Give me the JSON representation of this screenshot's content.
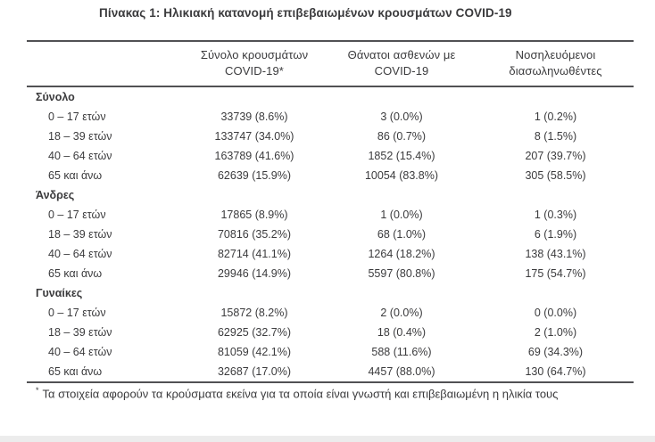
{
  "title": "Πίνακας 1: Ηλικιακή κατανομή επιβεβαιωμένων κρουσμάτων COVID-19",
  "colors": {
    "text": "#3b3b3d",
    "rule": "#515154",
    "background": "#ffffff"
  },
  "table": {
    "columns": {
      "cases_line1": "Σύνολο κρουσμάτων",
      "cases_line2": "COVID-19*",
      "deaths_line1": "Θάνατοι ασθενών με",
      "deaths_line2": "COVID-19",
      "hospitalized_line1": "Νοσηλευόμενοι",
      "hospitalized_line2": "διασωληνωθέντες"
    },
    "sections": [
      {
        "label": "Σύνολο",
        "rows": [
          {
            "age": "0 – 17 ετών",
            "cases": "33739 (8.6%)",
            "deaths": "3 (0.0%)",
            "hospitalized": "1 (0.2%)"
          },
          {
            "age": "18 – 39 ετών",
            "cases": "133747 (34.0%)",
            "deaths": "86 (0.7%)",
            "hospitalized": "8 (1.5%)"
          },
          {
            "age": "40 – 64 ετών",
            "cases": "163789 (41.6%)",
            "deaths": "1852 (15.4%)",
            "hospitalized": "207 (39.7%)"
          },
          {
            "age": "65 και άνω",
            "cases": "62639 (15.9%)",
            "deaths": "10054 (83.8%)",
            "hospitalized": "305 (58.5%)"
          }
        ]
      },
      {
        "label": "Άνδρες",
        "rows": [
          {
            "age": "0 – 17 ετών",
            "cases": "17865 (8.9%)",
            "deaths": "1 (0.0%)",
            "hospitalized": "1 (0.3%)"
          },
          {
            "age": "18 – 39 ετών",
            "cases": "70816 (35.2%)",
            "deaths": "68 (1.0%)",
            "hospitalized": "6 (1.9%)"
          },
          {
            "age": "40 – 64 ετών",
            "cases": "82714 (41.1%)",
            "deaths": "1264 (18.2%)",
            "hospitalized": "138 (43.1%)"
          },
          {
            "age": "65 και άνω",
            "cases": "29946 (14.9%)",
            "deaths": "5597 (80.8%)",
            "hospitalized": "175 (54.7%)"
          }
        ]
      },
      {
        "label": "Γυναίκες",
        "rows": [
          {
            "age": "0 – 17 ετών",
            "cases": "15872 (8.2%)",
            "deaths": "2 (0.0%)",
            "hospitalized": "0 (0.0%)"
          },
          {
            "age": "18 – 39 ετών",
            "cases": "62925 (32.7%)",
            "deaths": "18 (0.4%)",
            "hospitalized": "2 (1.0%)"
          },
          {
            "age": "40 – 64 ετών",
            "cases": "81059 (42.1%)",
            "deaths": "588 (11.6%)",
            "hospitalized": "69 (34.3%)"
          },
          {
            "age": "65 και άνω",
            "cases": "32687 (17.0%)",
            "deaths": "4457 (88.0%)",
            "hospitalized": "130 (64.7%)"
          }
        ]
      }
    ]
  },
  "footnote": {
    "marker": "*",
    "text": "Τα στοιχεία αφορούν τα κρούσματα εκείνα για τα οποία είναι γνωστή και επιβεβαιωμένη η ηλικία τους"
  }
}
